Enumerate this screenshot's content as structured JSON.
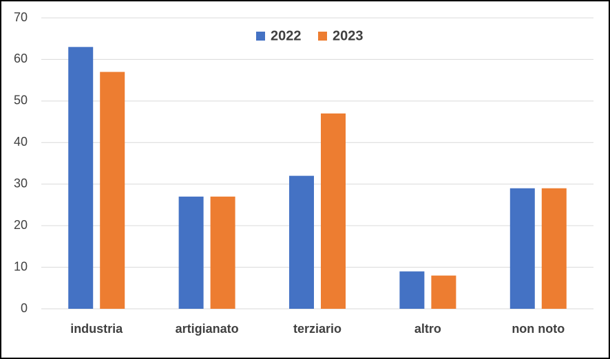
{
  "chart_data": {
    "type": "bar",
    "categories": [
      "industria",
      "artigianato",
      "terziario",
      "altro",
      "non noto"
    ],
    "series": [
      {
        "name": "2022",
        "color": "#4472c4",
        "values": [
          63,
          27,
          32,
          9,
          29
        ]
      },
      {
        "name": "2023",
        "color": "#ed7d31",
        "values": [
          57,
          27,
          47,
          8,
          29
        ]
      }
    ],
    "ylim": [
      0,
      70
    ],
    "yticks": [
      0,
      10,
      20,
      30,
      40,
      50,
      60,
      70
    ],
    "grid": true,
    "legend": "top"
  }
}
